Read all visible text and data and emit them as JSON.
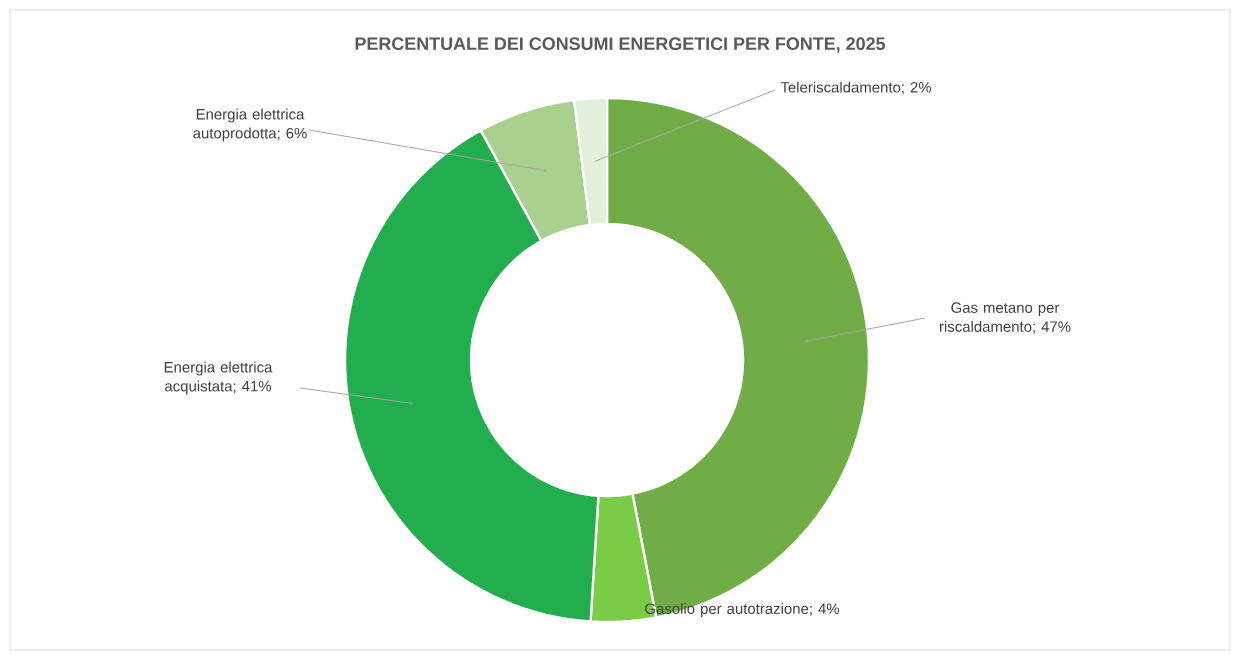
{
  "chart_data": {
    "type": "donut",
    "title": "PERCENTUALE DEI CONSUMI ENERGETICI PER FONTE, 2025",
    "categories": [
      "Gas metano per riscaldamento; 47%",
      "Gasolio per autotrazione; 4%",
      "Energia elettrica acquistata; 41%",
      "Energia elettrica autoprodotta; 6%",
      "Teleriscaldamento; 2%"
    ],
    "values": [
      47,
      4,
      41,
      6,
      2
    ],
    "colors": [
      "#70ad47",
      "#7acb45",
      "#22ad4e",
      "#a9d08e",
      "#e2efda"
    ]
  }
}
